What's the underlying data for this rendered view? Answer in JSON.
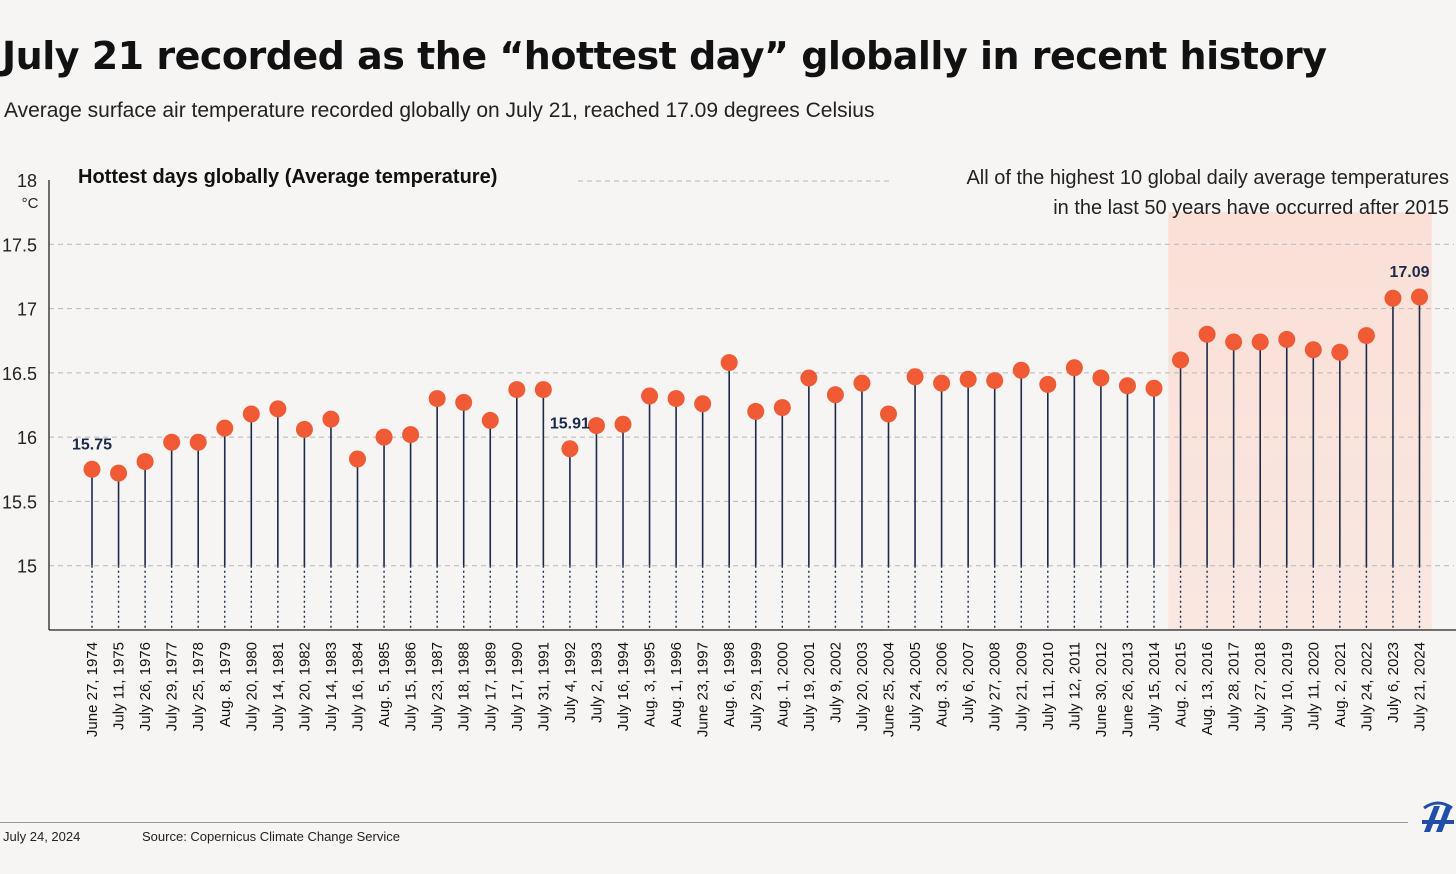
{
  "title": "July 21 recorded as the “hottest day” globally in recent history",
  "subtitle": "Average surface air temperature recorded globally on July 21, reached 17.09 degrees Celsius",
  "footer": {
    "date": "July 24, 2024",
    "source": "Source: Copernicus Climate Change Service"
  },
  "logo": "aa-logo-icon",
  "colors": {
    "dot": "#f05a35",
    "stem": "#1c2a4a",
    "highlight": "#fbdcd2",
    "annotation": "#1c2a4a"
  },
  "chart_data": {
    "type": "scatter",
    "style": "lollipop",
    "title": "Hottest days globally (Average temperature)",
    "ylabel": "°C",
    "ylim": [
      14.5,
      18
    ],
    "yticks": [
      "15",
      "15.5",
      "16",
      "16.5",
      "17",
      "17.5",
      "18"
    ],
    "grid": true,
    "annotation": "All of the highest 10 global daily average temperatures in the last 50 years have occurred after 2015",
    "highlight_range": [
      "Aug. 2, 2015",
      "July 21, 2024"
    ],
    "point_labels": [
      {
        "category": "June 27, 1974",
        "text": "15.75"
      },
      {
        "category": "July 4, 1992",
        "text": "15.91"
      },
      {
        "category": "July 21, 2024",
        "text": "17.09"
      }
    ],
    "categories": [
      "June 27, 1974",
      "July 11, 1975",
      "July 26, 1976",
      "July 29, 1977",
      "July 25, 1978",
      "Aug. 8, 1979",
      "July 20, 1980",
      "July 14, 1981",
      "July 20, 1982",
      "July 14, 1983",
      "July 16, 1984",
      "Aug. 5, 1985",
      "July 15, 1986",
      "July 23, 1987",
      "July 18, 1988",
      "July 17, 1989",
      "July 17, 1990",
      "July 31, 1991",
      "July 4, 1992",
      "July 2, 1993",
      "July 16, 1994",
      "Aug. 3, 1995",
      "Aug. 1, 1996",
      "June 23, 1997",
      "Aug. 6, 1998",
      "July 29, 1999",
      "Aug. 1, 2000",
      "July 19, 2001",
      "July 9, 2002",
      "July 20, 2003",
      "June 25, 2004",
      "July 24, 2005",
      "Aug. 3, 2006",
      "July 6, 2007",
      "July 27, 2008",
      "July 21, 2009",
      "July 11, 2010",
      "July 12, 2011",
      "June 30, 2012",
      "June 26, 2013",
      "July 15, 2014",
      "Aug. 2, 2015",
      "Aug. 13, 2016",
      "July 28, 2017",
      "July 27, 2018",
      "July 10, 2019",
      "July 11, 2020",
      "Aug. 2, 2021",
      "July 24, 2022",
      "July 6, 2023",
      "July 21, 2024"
    ],
    "values": [
      15.75,
      15.72,
      15.81,
      15.96,
      15.96,
      16.07,
      16.18,
      16.22,
      16.06,
      16.14,
      15.83,
      16.0,
      16.02,
      16.3,
      16.27,
      16.13,
      16.37,
      16.37,
      15.91,
      16.09,
      16.1,
      16.32,
      16.3,
      16.26,
      16.58,
      16.2,
      16.23,
      16.46,
      16.33,
      16.42,
      16.18,
      16.47,
      16.42,
      16.45,
      16.44,
      16.52,
      16.41,
      16.54,
      16.46,
      16.4,
      16.38,
      16.6,
      16.8,
      16.74,
      16.74,
      16.76,
      16.68,
      16.66,
      16.79,
      17.08,
      17.09
    ]
  }
}
